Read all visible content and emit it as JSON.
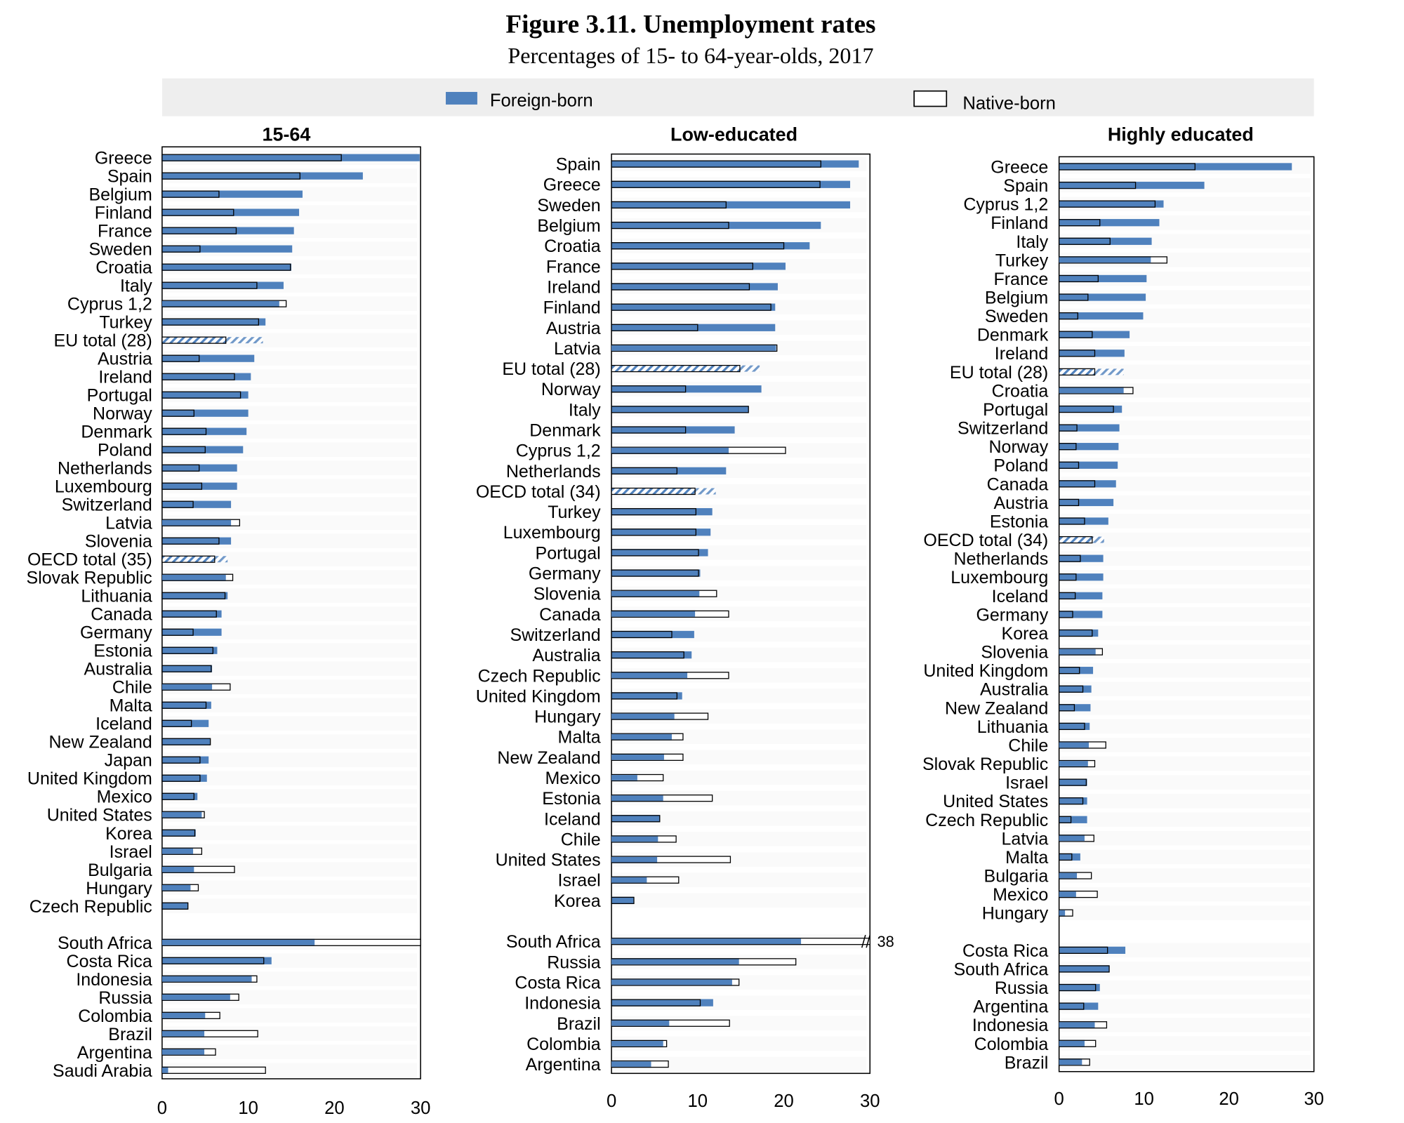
{
  "figure": {
    "title": "Figure 3.11. Unemployment rates",
    "subtitle": "Percentages of 15- to 64-year-olds, 2017"
  },
  "legend": {
    "foreign": "Foreign-born",
    "native": "Native-born"
  },
  "colors": {
    "foreign": "#4f81bd",
    "native": "#ffffff",
    "outline": "#000000",
    "legend_band": "#eeeeee"
  },
  "chart_data": [
    {
      "type": "bar",
      "orientation": "horizontal",
      "title": "15-64",
      "xlim": [
        0,
        30
      ],
      "xticks": [
        "0",
        "10",
        "20",
        "30"
      ],
      "groups": [
        {
          "categories": [
            "Greece",
            "Spain",
            "Belgium",
            "Finland",
            "France",
            "Sweden",
            "Croatia",
            "Italy",
            "Cyprus 1,2",
            "Turkey",
            "EU total (28)",
            "Austria",
            "Ireland",
            "Portugal",
            "Norway",
            "Denmark",
            "Poland",
            "Netherlands",
            "Luxembourg",
            "Switzerland",
            "Latvia",
            "Slovenia",
            "OECD total (35)",
            "Slovak Republic",
            "Lithuania",
            "Canada",
            "Germany",
            "Estonia",
            "Australia",
            "Chile",
            "Malta",
            "Iceland",
            "New Zealand",
            "Japan",
            "United Kingdom",
            "Mexico",
            "United States",
            "Korea",
            "Israel",
            "Bulgaria",
            "Hungary",
            "Czech Republic"
          ],
          "foreign": [
            29.9,
            23.3,
            16.3,
            15.9,
            15.3,
            15.1,
            15.0,
            14.1,
            13.6,
            12.0,
            11.7,
            10.7,
            10.3,
            10.0,
            10.0,
            9.8,
            9.4,
            8.7,
            8.7,
            8.0,
            8.0,
            8.0,
            7.6,
            7.4,
            7.6,
            6.9,
            6.9,
            6.4,
            5.8,
            5.8,
            5.7,
            5.4,
            5.6,
            5.4,
            5.2,
            4.1,
            4.6,
            3.9,
            3.6,
            3.7,
            3.3,
            3.0
          ],
          "native": [
            20.8,
            16.0,
            6.6,
            8.3,
            8.6,
            4.4,
            14.9,
            11.0,
            14.4,
            11.2,
            7.4,
            4.3,
            8.4,
            9.1,
            3.7,
            5.1,
            5.0,
            4.3,
            4.6,
            3.6,
            9.0,
            6.6,
            6.1,
            8.2,
            7.3,
            6.3,
            3.6,
            5.9,
            5.7,
            7.9,
            5.1,
            3.4,
            5.6,
            4.4,
            4.4,
            3.7,
            4.9,
            3.8,
            4.6,
            8.4,
            4.2,
            3.0
          ]
        },
        {
          "categories": [
            "South Africa",
            "Costa Rica",
            "Indonesia",
            "Russia",
            "Colombia",
            "Brazil",
            "Argentina",
            "Saudi Arabia"
          ],
          "foreign": [
            17.7,
            12.7,
            10.4,
            7.9,
            5.0,
            4.9,
            4.9,
            0.7
          ],
          "native": [
            30.8,
            11.8,
            11.0,
            8.9,
            6.7,
            11.1,
            6.2,
            12.0
          ]
        }
      ]
    },
    {
      "type": "bar",
      "orientation": "horizontal",
      "title": "Low-educated",
      "xlim": [
        0,
        30
      ],
      "xticks": [
        "0",
        "10",
        "20",
        "30"
      ],
      "annotations": [
        {
          "category": "South Africa",
          "series": "native",
          "text": "38",
          "value": 38,
          "axis_break": true
        }
      ],
      "groups": [
        {
          "categories": [
            "Spain",
            "Greece",
            "Sweden",
            "Belgium",
            "Croatia",
            "France",
            "Ireland",
            "Finland",
            "Austria",
            "Latvia",
            "EU total (28)",
            "Norway",
            "Italy",
            "Denmark",
            "Cyprus 1,2",
            "Netherlands",
            "OECD total (34)",
            "Turkey",
            "Luxembourg",
            "Portugal",
            "Germany",
            "Slovenia",
            "Canada",
            "Switzerland",
            "Australia",
            "Czech Republic",
            "United Kingdom",
            "Hungary",
            "Malta",
            "New Zealand",
            "Mexico",
            "Estonia",
            "Iceland",
            "Chile",
            "United States",
            "Israel",
            "Korea"
          ],
          "foreign": [
            28.7,
            27.7,
            27.7,
            24.3,
            23.0,
            20.2,
            19.3,
            19.0,
            19.0,
            19.1,
            17.2,
            17.4,
            15.9,
            14.3,
            13.6,
            13.3,
            12.1,
            11.7,
            11.5,
            11.2,
            10.3,
            10.2,
            9.7,
            9.6,
            9.3,
            8.8,
            8.2,
            7.3,
            7.0,
            6.1,
            3.0,
            6.0,
            5.6,
            5.4,
            5.3,
            4.1,
            2.6
          ],
          "native": [
            24.3,
            24.2,
            13.3,
            13.6,
            20.0,
            16.4,
            16.0,
            18.5,
            10.0,
            19.2,
            14.9,
            8.6,
            15.9,
            8.6,
            20.2,
            7.6,
            9.7,
            9.8,
            9.8,
            10.1,
            10.1,
            12.2,
            13.6,
            7.0,
            8.4,
            13.6,
            7.6,
            11.2,
            8.3,
            8.3,
            6.0,
            11.7,
            5.6,
            7.5,
            13.8,
            7.8,
            2.6
          ]
        },
        {
          "categories": [
            "South Africa",
            "Russia",
            "Costa Rica",
            "Indonesia",
            "Brazil",
            "Colombia",
            "Argentina"
          ],
          "foreign": [
            22.0,
            14.8,
            14.0,
            11.8,
            6.7,
            6.0,
            4.6
          ],
          "native": [
            38,
            21.4,
            14.8,
            10.3,
            13.7,
            6.4,
            6.6
          ]
        }
      ]
    },
    {
      "type": "bar",
      "orientation": "horizontal",
      "title": "Highly educated",
      "xlim": [
        0,
        30
      ],
      "xticks": [
        "0",
        "10",
        "20",
        "30"
      ],
      "groups": [
        {
          "categories": [
            "Greece",
            "Spain",
            "Cyprus 1,2",
            "Finland",
            "Italy",
            "Turkey",
            "France",
            "Belgium",
            "Sweden",
            "Denmark",
            "Ireland",
            "EU total (28)",
            "Croatia",
            "Portugal",
            "Switzerland",
            "Norway",
            "Poland",
            "Canada",
            "Austria",
            "Estonia",
            "OECD total (34)",
            "Netherlands",
            "Luxembourg",
            "Iceland",
            "Germany",
            "Korea",
            "Slovenia",
            "United Kingdom",
            "Australia",
            "New Zealand",
            "Lithuania",
            "Chile",
            "Slovak Republic",
            "Israel",
            "United States",
            "Czech Republic",
            "Latvia",
            "Malta",
            "Bulgaria",
            "Mexico",
            "Hungary"
          ],
          "foreign": [
            27.4,
            17.1,
            12.3,
            11.8,
            10.9,
            10.8,
            10.3,
            10.2,
            9.9,
            8.3,
            7.7,
            7.6,
            7.6,
            7.4,
            7.1,
            7.0,
            6.9,
            6.7,
            6.4,
            5.8,
            5.3,
            5.2,
            5.2,
            5.1,
            5.1,
            4.6,
            4.3,
            4.0,
            3.8,
            3.7,
            3.6,
            3.5,
            3.4,
            3.3,
            3.3,
            3.3,
            3.0,
            2.5,
            2.1,
            2.0,
            0.7
          ],
          "native": [
            16.0,
            9.0,
            11.3,
            4.8,
            6.0,
            12.7,
            4.6,
            3.4,
            2.2,
            3.9,
            4.2,
            4.2,
            8.7,
            6.4,
            2.1,
            2.0,
            2.3,
            4.2,
            2.3,
            3.0,
            3.9,
            2.5,
            2.0,
            1.9,
            1.6,
            3.9,
            5.1,
            2.4,
            2.8,
            1.8,
            3.0,
            5.5,
            4.2,
            3.2,
            2.8,
            1.4,
            4.1,
            1.5,
            3.8,
            4.5,
            1.6
          ]
        },
        {
          "categories": [
            "Costa Rica",
            "South Africa",
            "Russia",
            "Argentina",
            "Indonesia",
            "Colombia",
            "Brazil"
          ],
          "foreign": [
            7.8,
            5.9,
            4.8,
            4.6,
            4.2,
            3.0,
            2.7
          ],
          "native": [
            5.7,
            5.9,
            4.3,
            2.9,
            5.6,
            4.3,
            3.6
          ]
        }
      ]
    }
  ]
}
